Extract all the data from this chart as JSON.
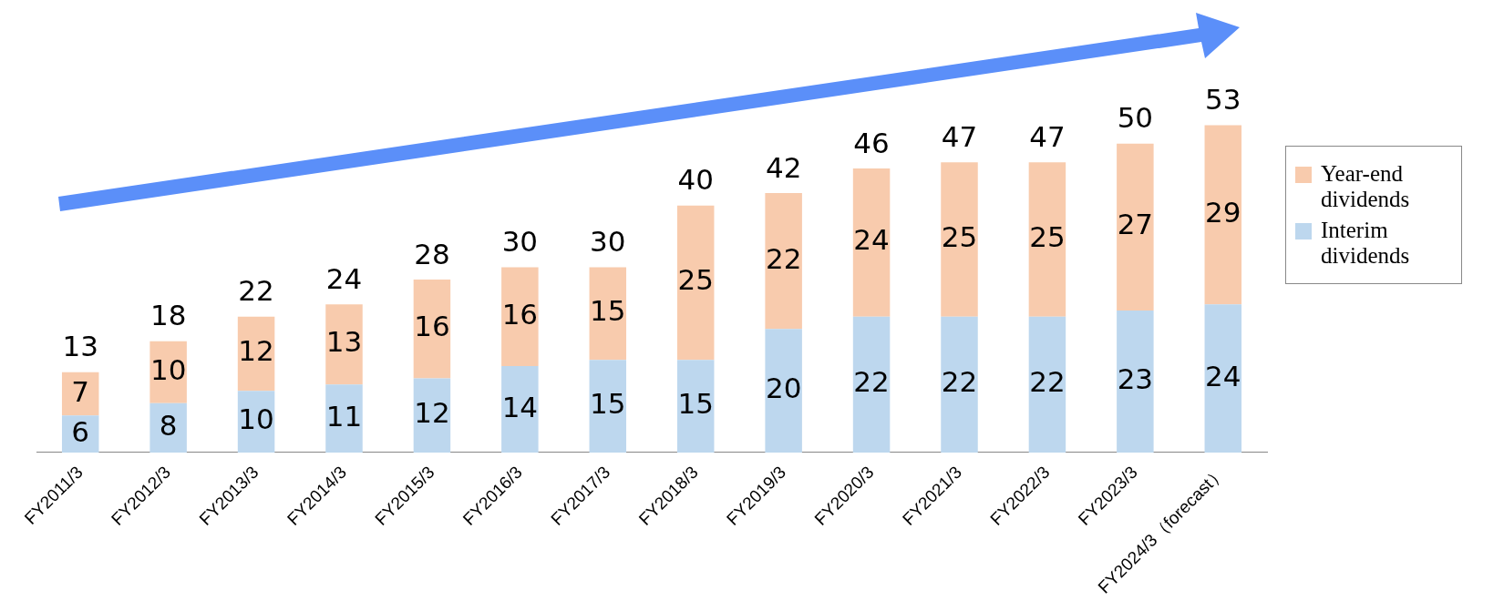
{
  "chart_data": {
    "type": "bar",
    "stacked": true,
    "data_labels": true,
    "legend": "right",
    "categories": [
      "FY2011/3",
      "FY2012/3",
      "FY2013/3",
      "FY2014/3",
      "FY2015/3",
      "FY2016/3",
      "FY2017/3",
      "FY2018/3",
      "FY2019/3",
      "FY2020/3",
      "FY2021/3",
      "FY2022/3",
      "FY2023/3",
      "FY2024/3（forecast）"
    ],
    "series": [
      {
        "name": "Interim dividends",
        "color": "#bdd7ee",
        "values": [
          6,
          8,
          10,
          11,
          12,
          14,
          15,
          15,
          20,
          22,
          22,
          22,
          23,
          24
        ]
      },
      {
        "name": "Year-end dividends",
        "color": "#f8cbad",
        "values": [
          7,
          10,
          12,
          13,
          16,
          16,
          15,
          25,
          22,
          24,
          25,
          25,
          27,
          29
        ]
      }
    ],
    "totals": [
      "13",
      "18",
      "22",
      "24",
      "28",
      "30",
      "30",
      "40",
      "42",
      "46",
      "47",
      "47",
      "50",
      "53"
    ]
  }
}
